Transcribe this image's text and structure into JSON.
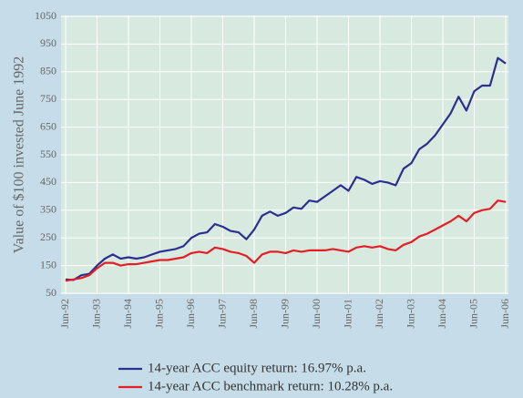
{
  "chart_data": {
    "type": "line",
    "y_axis_label": "Value of $100 invested June 1992",
    "categories": [
      "Jun-92",
      null,
      null,
      null,
      "Jun-93",
      null,
      null,
      null,
      "Jun-94",
      null,
      null,
      null,
      "Jun-95",
      null,
      null,
      null,
      "Jun-96",
      null,
      null,
      null,
      "Jun-97",
      null,
      null,
      null,
      "Jun-98",
      null,
      null,
      null,
      "Jun-99",
      null,
      null,
      null,
      "Jun-00",
      null,
      null,
      null,
      "Jun-01",
      null,
      null,
      null,
      "Jun-02",
      null,
      null,
      null,
      "Jun-03",
      null,
      null,
      null,
      "Jun-04",
      null,
      null,
      null,
      "Jun-05",
      null,
      null,
      null,
      "Jun-06"
    ],
    "series": [
      {
        "name": "14-year ACC equity return: 16.97% p.a.",
        "color": "#2b2f8f",
        "values": [
          100,
          98,
          115,
          120,
          150,
          175,
          190,
          175,
          180,
          175,
          180,
          190,
          200,
          205,
          210,
          220,
          250,
          265,
          270,
          300,
          290,
          275,
          270,
          245,
          280,
          330,
          345,
          330,
          340,
          360,
          355,
          385,
          380,
          400,
          420,
          440,
          420,
          470,
          460,
          445,
          455,
          450,
          440,
          500,
          520,
          570,
          590,
          620,
          660,
          700,
          760,
          710,
          780,
          800,
          800,
          900,
          880
        ]
      },
      {
        "name": "14-year ACC benchmark return: 10.28% p.a.",
        "color": "#e31e24",
        "values": [
          95,
          100,
          105,
          115,
          140,
          160,
          160,
          150,
          155,
          155,
          160,
          165,
          170,
          170,
          175,
          180,
          195,
          200,
          195,
          215,
          210,
          200,
          195,
          185,
          160,
          190,
          200,
          200,
          195,
          205,
          200,
          205,
          205,
          205,
          210,
          205,
          200,
          215,
          220,
          215,
          220,
          210,
          205,
          225,
          235,
          255,
          265,
          280,
          295,
          310,
          330,
          310,
          340,
          350,
          355,
          385,
          380
        ]
      }
    ],
    "ylim": [
      50,
      1050
    ],
    "yticks": [
      50,
      150,
      250,
      350,
      450,
      550,
      650,
      750,
      850,
      950,
      1050
    ],
    "grid": true
  }
}
